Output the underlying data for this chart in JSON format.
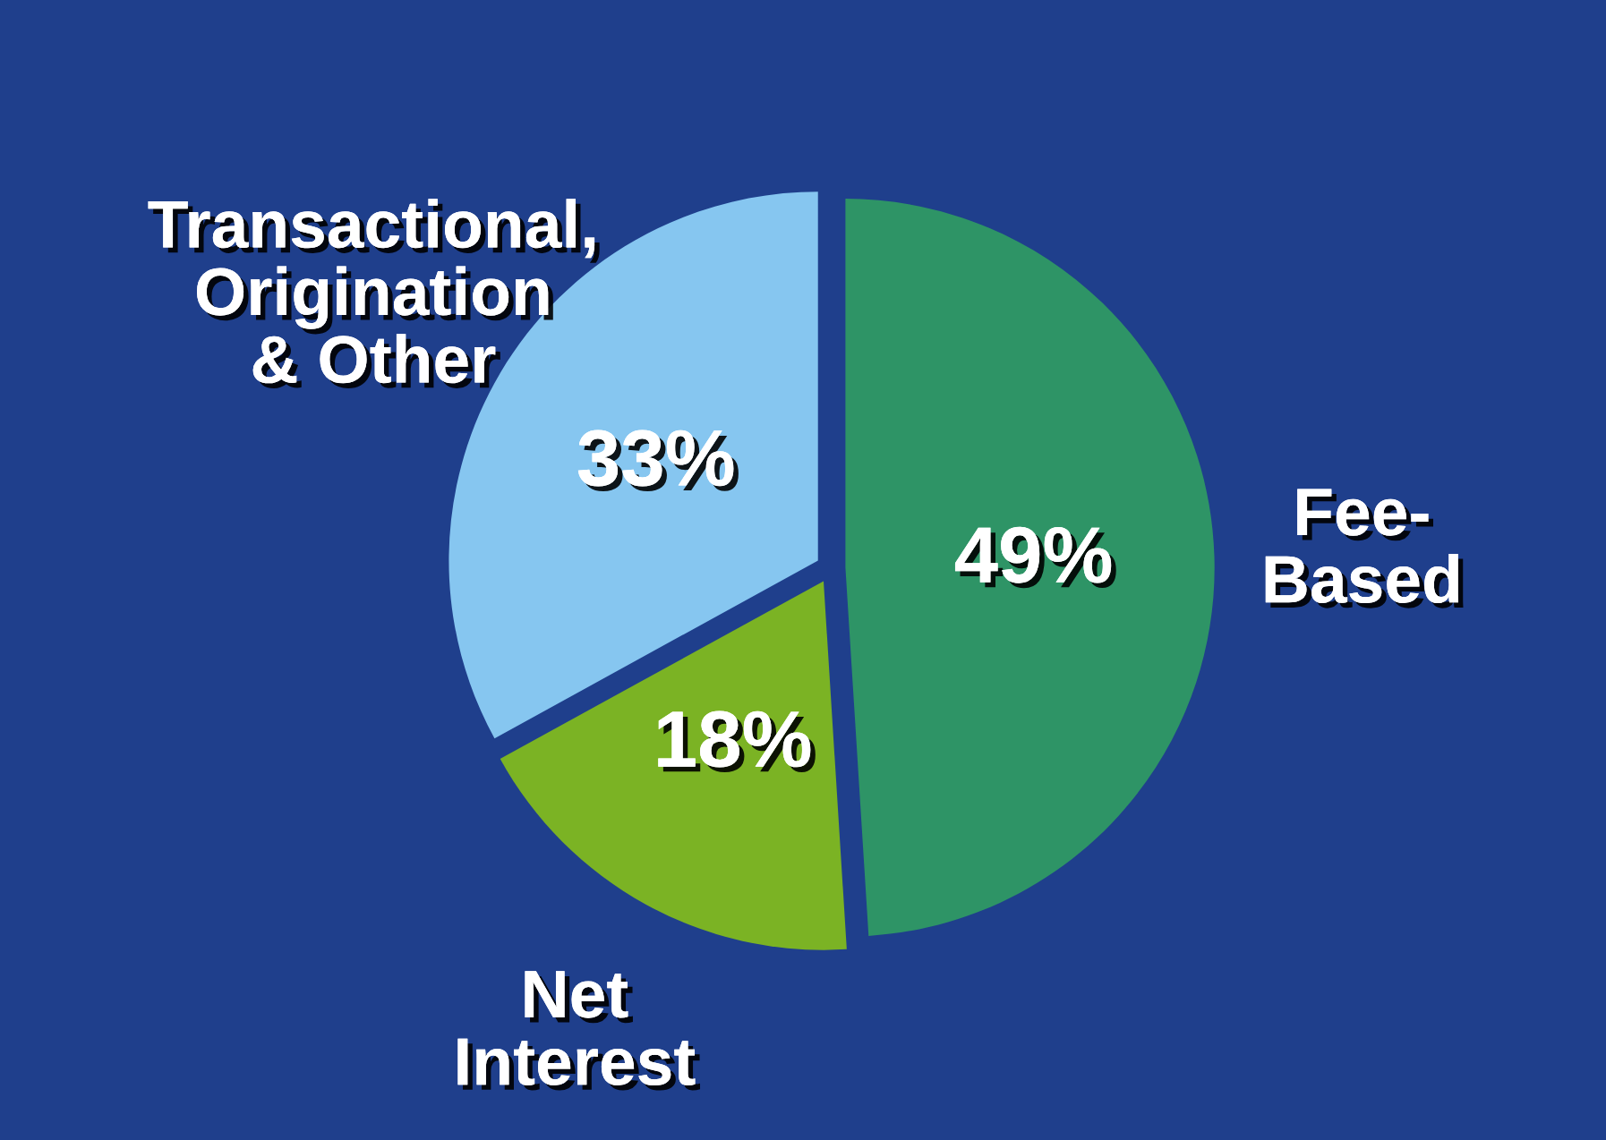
{
  "chart_data": {
    "type": "pie",
    "categories": [
      "Fee-\nBased",
      "Net\nInterest",
      "Transactional,\nOrigination\n& Other"
    ],
    "values": [
      49,
      18,
      33
    ],
    "value_labels": [
      "49%",
      "18%",
      "33%"
    ],
    "colors": [
      "#2e9466",
      "#7bb324",
      "#86c6f0"
    ],
    "legend": false
  }
}
